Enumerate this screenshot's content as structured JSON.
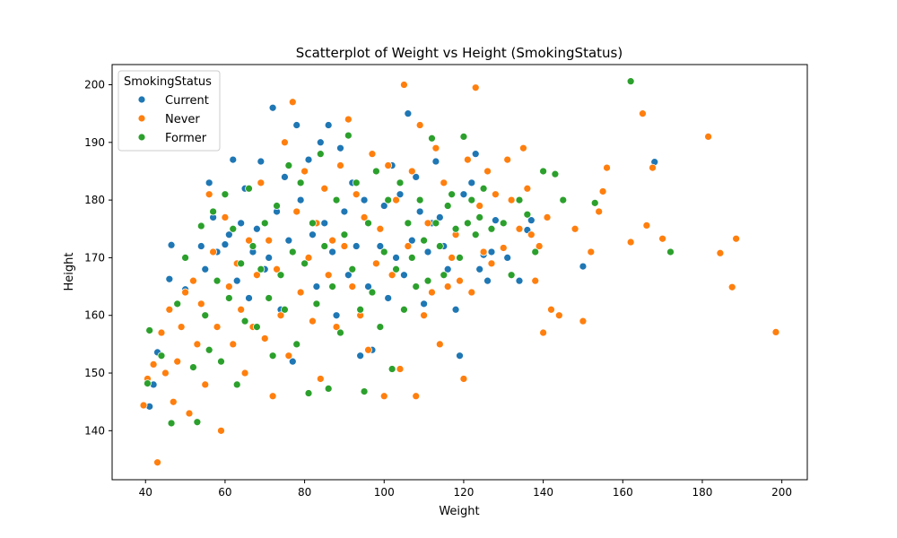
{
  "chart_data": {
    "type": "scatter",
    "title": "Scatterplot of Weight vs Height (SmokingStatus)",
    "xlabel": "Weight",
    "ylabel": "Height",
    "xlim": [
      31.6,
      206.4
    ],
    "ylim": [
      131.5,
      203.5
    ],
    "xticks": [
      40,
      60,
      80,
      100,
      120,
      140,
      160,
      180,
      200
    ],
    "yticks": [
      140,
      150,
      160,
      170,
      180,
      190,
      200
    ],
    "grid": false,
    "legend": {
      "title": "SmokingStatus",
      "placement": "top-left",
      "entries": [
        "Current",
        "Never",
        "Former"
      ]
    },
    "series": [
      {
        "name": "Current",
        "color": "#1f77b4",
        "points": [
          [
            41,
            144.2
          ],
          [
            42,
            148
          ],
          [
            43,
            153.6
          ],
          [
            46,
            166.3
          ],
          [
            46.5,
            172.2
          ],
          [
            50,
            164.5
          ],
          [
            54,
            172
          ],
          [
            55,
            168
          ],
          [
            56,
            183
          ],
          [
            57,
            177
          ],
          [
            58,
            171
          ],
          [
            60,
            172.3
          ],
          [
            61,
            174
          ],
          [
            62,
            187
          ],
          [
            63,
            166
          ],
          [
            64,
            176
          ],
          [
            65,
            182
          ],
          [
            66,
            163
          ],
          [
            67,
            171
          ],
          [
            68,
            175
          ],
          [
            69,
            186.7
          ],
          [
            70,
            168
          ],
          [
            71,
            170
          ],
          [
            72,
            196
          ],
          [
            73,
            178
          ],
          [
            74,
            161
          ],
          [
            75,
            184
          ],
          [
            76,
            173
          ],
          [
            77,
            152
          ],
          [
            78,
            193
          ],
          [
            79,
            180
          ],
          [
            80,
            169
          ],
          [
            81,
            187
          ],
          [
            82,
            174
          ],
          [
            83,
            165
          ],
          [
            84,
            190
          ],
          [
            85,
            176
          ],
          [
            86,
            193
          ],
          [
            87,
            171
          ],
          [
            88,
            160
          ],
          [
            89,
            189
          ],
          [
            90,
            178
          ],
          [
            91,
            167
          ],
          [
            92,
            183
          ],
          [
            93,
            172
          ],
          [
            94,
            153
          ],
          [
            95,
            180
          ],
          [
            96,
            165
          ],
          [
            97,
            154
          ],
          [
            98,
            185
          ],
          [
            99,
            172
          ],
          [
            100,
            179
          ],
          [
            101,
            163
          ],
          [
            102,
            186
          ],
          [
            103,
            170
          ],
          [
            104,
            181
          ],
          [
            105,
            167
          ],
          [
            106,
            195
          ],
          [
            107,
            173
          ],
          [
            108,
            184
          ],
          [
            109,
            178
          ],
          [
            110,
            162
          ],
          [
            111,
            171
          ],
          [
            112,
            176
          ],
          [
            113,
            186.7
          ],
          [
            114,
            177
          ],
          [
            115,
            172
          ],
          [
            116,
            168
          ],
          [
            118,
            161
          ],
          [
            119,
            153
          ],
          [
            120,
            181
          ],
          [
            122,
            183
          ],
          [
            123,
            188
          ],
          [
            124,
            168
          ],
          [
            125,
            170.5
          ],
          [
            126,
            166
          ],
          [
            127,
            171
          ],
          [
            128,
            176.5
          ],
          [
            131,
            170
          ],
          [
            134,
            166
          ],
          [
            136,
            174.8
          ],
          [
            137,
            176.5
          ],
          [
            150,
            168.5
          ],
          [
            168,
            186.6
          ]
        ]
      },
      {
        "name": "Never",
        "color": "#ff7f0e",
        "points": [
          [
            39.5,
            144.4
          ],
          [
            40.5,
            149
          ],
          [
            42,
            151.5
          ],
          [
            43,
            134.5
          ],
          [
            44,
            157
          ],
          [
            45,
            150
          ],
          [
            46,
            161
          ],
          [
            47,
            145
          ],
          [
            48,
            152
          ],
          [
            49,
            158
          ],
          [
            50,
            164
          ],
          [
            51,
            143
          ],
          [
            52,
            166
          ],
          [
            53,
            155
          ],
          [
            54,
            162
          ],
          [
            55,
            148
          ],
          [
            56,
            181
          ],
          [
            57,
            171
          ],
          [
            58,
            158
          ],
          [
            59,
            140
          ],
          [
            60,
            177
          ],
          [
            61,
            165
          ],
          [
            62,
            155
          ],
          [
            63,
            169
          ],
          [
            64,
            161
          ],
          [
            65,
            150
          ],
          [
            66,
            173
          ],
          [
            67,
            158
          ],
          [
            68,
            167
          ],
          [
            69,
            183
          ],
          [
            70,
            156
          ],
          [
            71,
            173
          ],
          [
            72,
            146
          ],
          [
            73,
            168
          ],
          [
            74,
            160
          ],
          [
            75,
            190
          ],
          [
            76,
            153
          ],
          [
            77,
            197
          ],
          [
            78,
            178
          ],
          [
            79,
            164
          ],
          [
            80,
            185
          ],
          [
            81,
            170
          ],
          [
            82,
            159
          ],
          [
            83,
            176
          ],
          [
            84,
            149
          ],
          [
            85,
            182
          ],
          [
            86,
            167
          ],
          [
            87,
            173
          ],
          [
            88,
            158
          ],
          [
            89,
            186
          ],
          [
            90,
            172
          ],
          [
            91,
            194
          ],
          [
            92,
            165
          ],
          [
            93,
            181
          ],
          [
            94,
            160
          ],
          [
            95,
            177
          ],
          [
            96,
            154
          ],
          [
            97,
            188
          ],
          [
            98,
            169
          ],
          [
            99,
            175
          ],
          [
            100,
            146
          ],
          [
            101,
            186
          ],
          [
            102,
            167
          ],
          [
            103,
            180
          ],
          [
            104,
            150.7
          ],
          [
            105,
            200
          ],
          [
            106,
            172
          ],
          [
            107,
            185
          ],
          [
            108,
            146
          ],
          [
            109,
            193
          ],
          [
            110,
            160
          ],
          [
            111,
            176
          ],
          [
            112,
            164
          ],
          [
            113,
            189
          ],
          [
            114,
            155
          ],
          [
            115,
            183
          ],
          [
            116,
            165
          ],
          [
            117,
            170
          ],
          [
            118,
            174
          ],
          [
            119,
            166
          ],
          [
            120,
            149
          ],
          [
            121,
            187
          ],
          [
            122,
            164
          ],
          [
            123,
            199.5
          ],
          [
            124,
            179
          ],
          [
            125,
            171
          ],
          [
            126,
            185
          ],
          [
            127,
            169
          ],
          [
            128,
            181
          ],
          [
            130,
            171.7
          ],
          [
            131,
            187
          ],
          [
            132,
            180
          ],
          [
            134,
            175
          ],
          [
            135,
            189
          ],
          [
            136,
            182
          ],
          [
            137,
            174
          ],
          [
            138,
            166
          ],
          [
            139,
            172
          ],
          [
            140,
            157
          ],
          [
            141,
            177
          ],
          [
            142,
            161
          ],
          [
            144,
            160
          ],
          [
            148,
            175
          ],
          [
            150,
            159
          ],
          [
            152,
            171
          ],
          [
            154,
            178
          ],
          [
            155,
            181.5
          ],
          [
            156,
            185.6
          ],
          [
            162,
            172.7
          ],
          [
            165,
            195
          ],
          [
            166,
            175.6
          ],
          [
            167.5,
            185.6
          ],
          [
            170,
            173.3
          ],
          [
            181.5,
            191
          ],
          [
            184.5,
            170.8
          ],
          [
            187.5,
            164.9
          ],
          [
            188.5,
            173.3
          ],
          [
            198.5,
            157.1
          ]
        ]
      },
      {
        "name": "Former",
        "color": "#2ca02c",
        "points": [
          [
            40.5,
            148.2
          ],
          [
            41,
            157.4
          ],
          [
            44,
            153
          ],
          [
            46.5,
            141.3
          ],
          [
            48,
            162
          ],
          [
            50,
            170
          ],
          [
            52,
            151
          ],
          [
            53,
            141.5
          ],
          [
            54,
            175.5
          ],
          [
            55,
            160
          ],
          [
            56,
            154
          ],
          [
            57,
            178
          ],
          [
            58,
            166
          ],
          [
            59,
            152
          ],
          [
            60,
            181
          ],
          [
            61,
            163
          ],
          [
            62,
            175
          ],
          [
            63,
            148
          ],
          [
            64,
            169
          ],
          [
            65,
            159
          ],
          [
            66,
            182
          ],
          [
            67,
            172
          ],
          [
            68,
            158
          ],
          [
            69,
            168
          ],
          [
            70,
            176
          ],
          [
            71,
            163
          ],
          [
            72,
            153
          ],
          [
            73,
            179
          ],
          [
            74,
            167
          ],
          [
            75,
            161
          ],
          [
            76,
            186
          ],
          [
            77,
            171
          ],
          [
            78,
            155
          ],
          [
            79,
            183
          ],
          [
            80,
            169
          ],
          [
            81,
            146.5
          ],
          [
            82,
            176
          ],
          [
            83,
            162
          ],
          [
            84,
            188
          ],
          [
            85,
            172
          ],
          [
            86,
            147.3
          ],
          [
            87,
            165
          ],
          [
            88,
            180
          ],
          [
            89,
            157
          ],
          [
            90,
            174
          ],
          [
            91,
            191.2
          ],
          [
            92,
            168
          ],
          [
            93,
            183
          ],
          [
            94,
            161
          ],
          [
            95,
            146.8
          ],
          [
            96,
            176
          ],
          [
            97,
            164
          ],
          [
            98,
            185
          ],
          [
            99,
            158
          ],
          [
            100,
            171
          ],
          [
            101,
            180
          ],
          [
            102,
            150.7
          ],
          [
            103,
            168
          ],
          [
            104,
            183
          ],
          [
            105,
            161
          ],
          [
            106,
            176
          ],
          [
            107,
            170
          ],
          [
            108,
            165
          ],
          [
            109,
            180
          ],
          [
            110,
            173
          ],
          [
            111,
            166
          ],
          [
            112,
            190.7
          ],
          [
            113,
            176
          ],
          [
            114,
            172
          ],
          [
            115,
            167
          ],
          [
            116,
            179
          ],
          [
            117,
            181
          ],
          [
            118,
            175
          ],
          [
            119,
            170
          ],
          [
            120,
            191
          ],
          [
            121,
            176
          ],
          [
            122,
            180
          ],
          [
            123,
            174
          ],
          [
            124,
            177
          ],
          [
            125,
            182
          ],
          [
            127,
            175
          ],
          [
            130,
            176
          ],
          [
            132,
            167
          ],
          [
            134,
            180
          ],
          [
            136,
            177.5
          ],
          [
            138,
            171
          ],
          [
            140,
            185
          ],
          [
            143,
            184.5
          ],
          [
            145,
            180
          ],
          [
            153,
            179.5
          ],
          [
            162,
            200.6
          ],
          [
            172,
            171
          ]
        ]
      }
    ]
  }
}
